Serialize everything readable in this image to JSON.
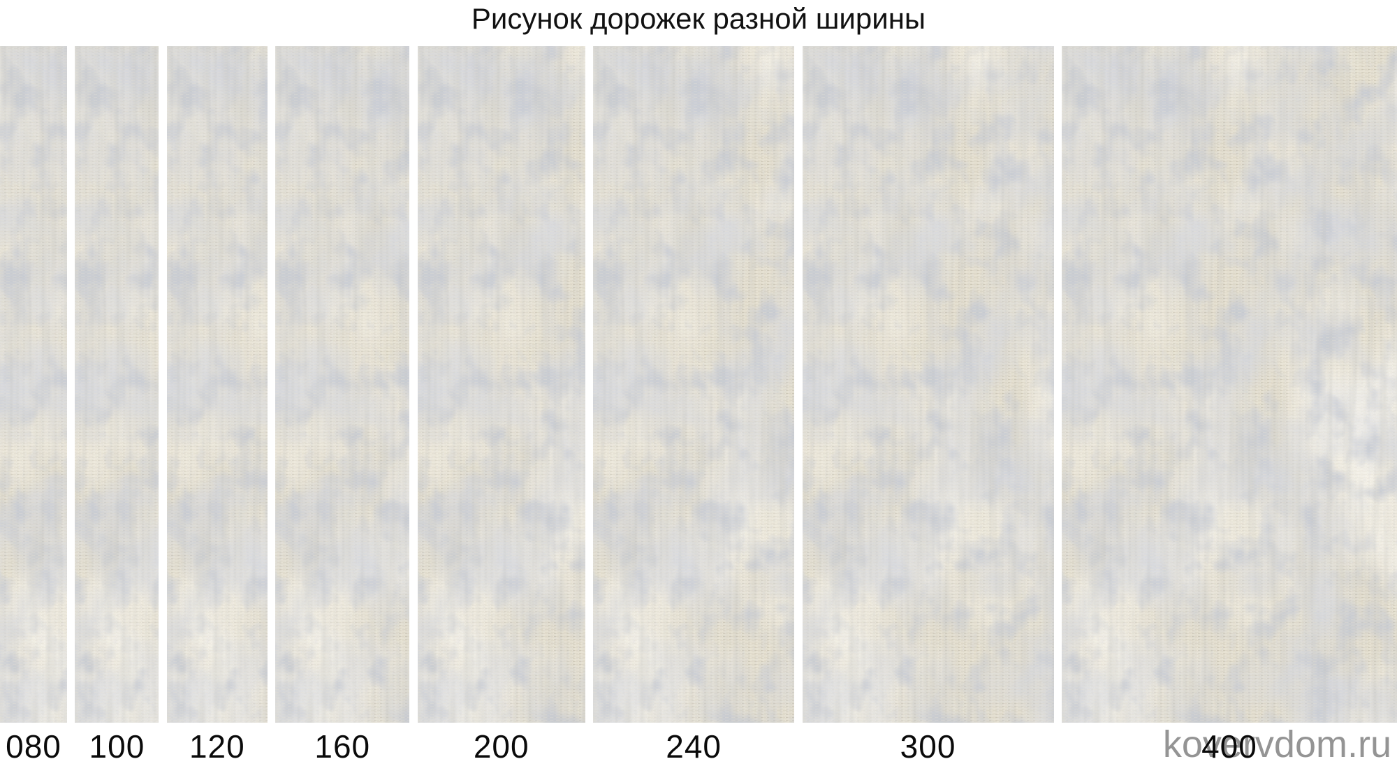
{
  "page": {
    "title": "Рисунок дорожек разной ширины",
    "watermark": "kovervdom.ru"
  },
  "strips": [
    {
      "label": "080",
      "width_cm": 80
    },
    {
      "label": "100",
      "width_cm": 100
    },
    {
      "label": "120",
      "width_cm": 120
    },
    {
      "label": "160",
      "width_cm": 160
    },
    {
      "label": "200",
      "width_cm": 200
    },
    {
      "label": "240",
      "width_cm": 240
    },
    {
      "label": "300",
      "width_cm": 300
    },
    {
      "label": "400",
      "width_cm": 400
    }
  ],
  "colors": {
    "background": "#ffffff",
    "title_text": "#111111",
    "label_text": "#0a0a0a",
    "watermark_gray": "#949494",
    "carpet_base": "#e7e2d3",
    "carpet_accent": "#a9aebb",
    "carpet_accent_dark": "#8f96a6",
    "carpet_light_patch": "#f0ebdd",
    "weave_line": "#d6d0bf",
    "weave_line_alt": "#cdc7b6"
  }
}
